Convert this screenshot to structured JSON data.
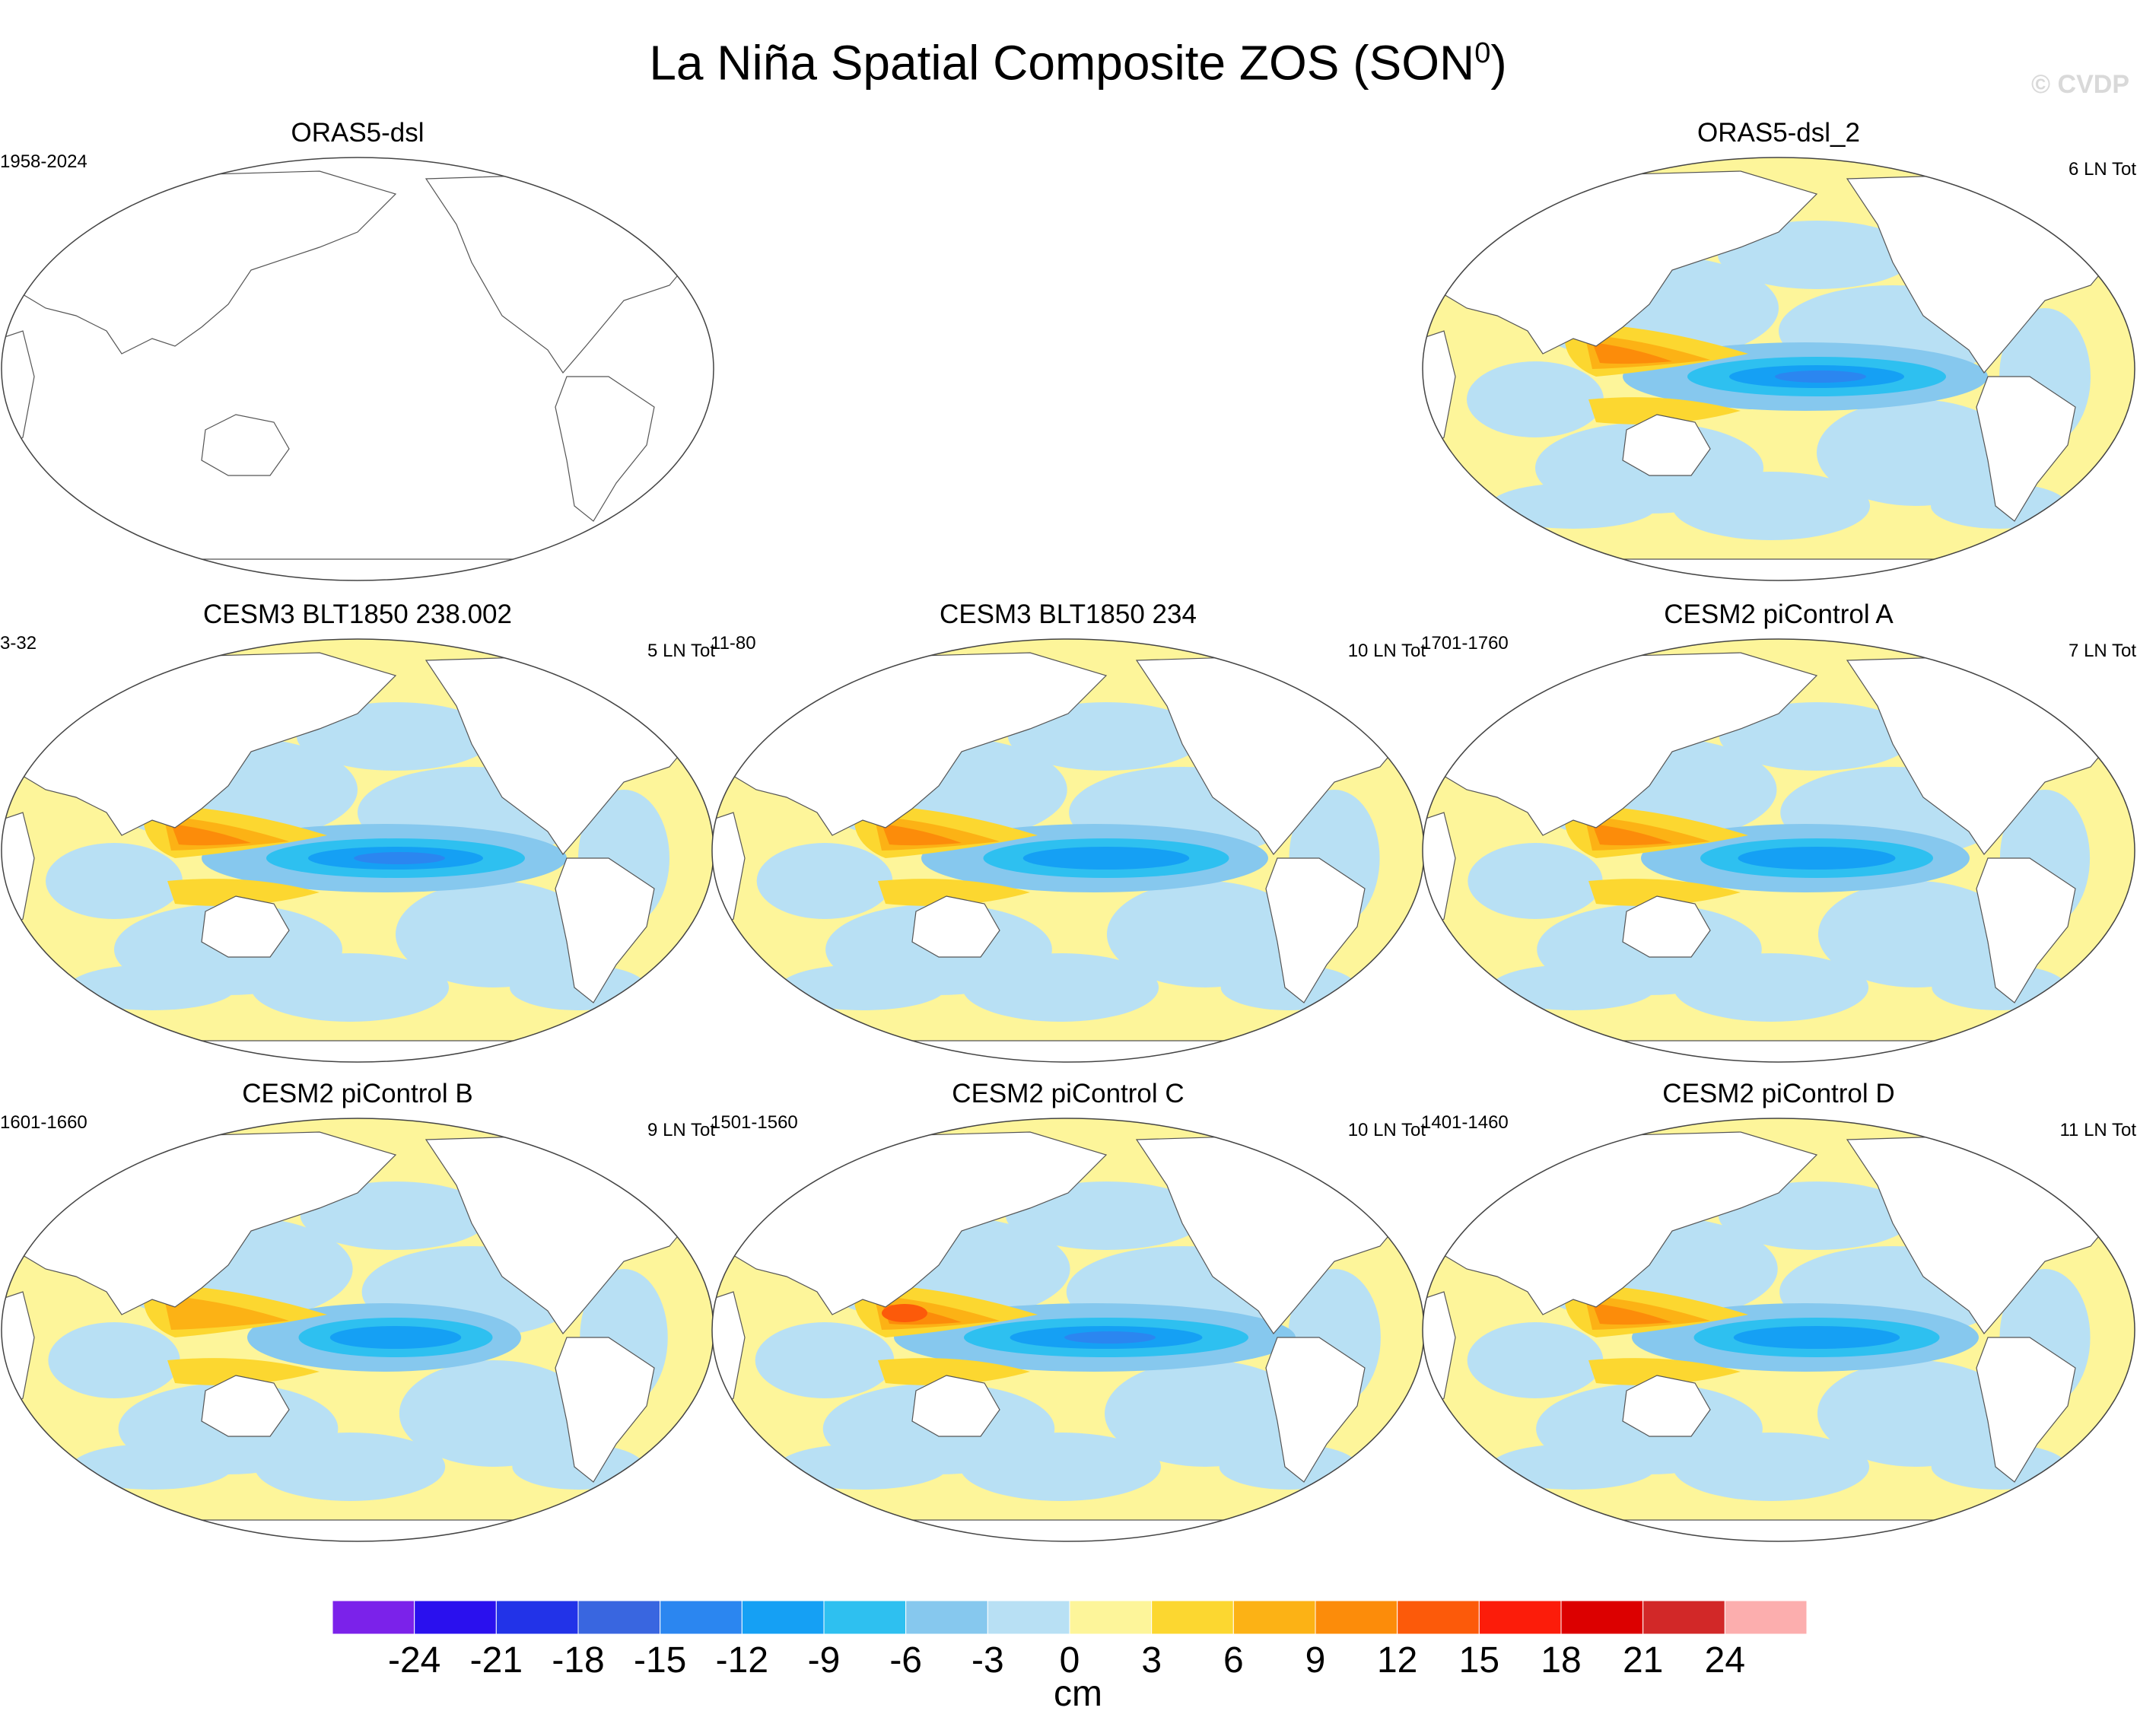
{
  "title": {
    "main": "La Niña Spatial Composite ZOS (SON",
    "superscript": "0",
    "close": ")"
  },
  "watermark": "© CVDP",
  "panels": [
    {
      "id": "p1",
      "title": "ORAS5-dsl",
      "period": "1958-2024",
      "count": "",
      "empty": true
    },
    {
      "id": "p2",
      "title": "ORAS5-dsl_2",
      "period": "",
      "count": "6 LN Tot",
      "empty": false,
      "intensity": 1.0
    },
    {
      "id": "p3",
      "title": "CESM3 BLT1850 238.002",
      "period": "3-32",
      "count": "5 LN Tot",
      "empty": false,
      "intensity": 1.0
    },
    {
      "id": "p4",
      "title": "CESM3 BLT1850 234",
      "period": "11-80",
      "count": "10 LN Tot",
      "empty": false,
      "intensity": 0.95
    },
    {
      "id": "p5",
      "title": "CESM2 piControl A",
      "period": "1701-1760",
      "count": "7 LN Tot",
      "empty": false,
      "intensity": 0.9
    },
    {
      "id": "p6",
      "title": "CESM2 piControl B",
      "period": "1601-1660",
      "count": "9 LN Tot",
      "empty": false,
      "intensity": 0.75
    },
    {
      "id": "p7",
      "title": "CESM2 piControl C",
      "period": "1501-1560",
      "count": "10 LN Tot",
      "empty": false,
      "intensity": 1.1
    },
    {
      "id": "p8",
      "title": "CESM2 piControl D",
      "period": "1401-1460",
      "count": "11 LN Tot",
      "empty": false,
      "intensity": 0.95
    }
  ],
  "colorbar": {
    "units": "cm",
    "labels": [
      "-24",
      "-21",
      "-18",
      "-15",
      "-12",
      "-9",
      "-6",
      "-3",
      "0",
      "3",
      "6",
      "9",
      "12",
      "15",
      "18",
      "21",
      "24"
    ],
    "colors": [
      "#7b22ea",
      "#2a10ee",
      "#2233e8",
      "#3966e0",
      "#2b86f0",
      "#15a0f4",
      "#2ec0f0",
      "#86c8ee",
      "#b8e0f4",
      "#fdf59a",
      "#fcd730",
      "#fcb215",
      "#fc8c0a",
      "#fc5a0a",
      "#fc1c0a",
      "#dc0000",
      "#d22828",
      "#fcaeae"
    ]
  }
}
